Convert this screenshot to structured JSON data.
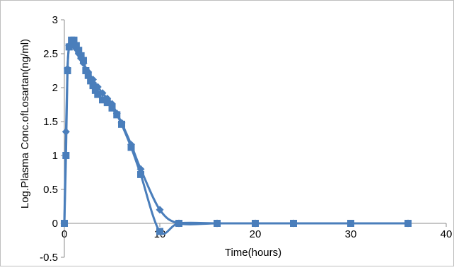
{
  "chart_data": {
    "type": "scatter",
    "title": "",
    "xlabel": "Time(hours)",
    "ylabel": "Log.Plasma Conc.ofLosartan(ng/ml)",
    "xlim": [
      0,
      40
    ],
    "ylim": [
      -0.5,
      3
    ],
    "x_ticks": [
      "0",
      "10",
      "20",
      "30",
      "40"
    ],
    "y_ticks": [
      "-0.5",
      "0",
      "0.5",
      "1",
      "1.5",
      "2",
      "2.5",
      "3"
    ],
    "x_tick_values": [
      0,
      10,
      20,
      30,
      40
    ],
    "y_tick_values": [
      -0.5,
      0,
      0.5,
      1,
      1.5,
      2,
      2.5,
      3
    ],
    "grid": false,
    "legend": "none",
    "series": [
      {
        "marker": "diamond",
        "color": "#4a7ebb",
        "x": [
          0,
          0.17,
          0.33,
          0.5,
          0.75,
          1,
          1.25,
          1.5,
          1.75,
          2,
          2.5,
          3,
          3.5,
          4,
          4.5,
          5,
          5.5,
          6,
          7,
          8,
          10,
          12,
          16,
          20,
          24,
          36
        ],
        "y": [
          0,
          1.35,
          2.28,
          2.62,
          2.65,
          2.62,
          2.57,
          2.5,
          2.43,
          2.36,
          2.23,
          2.12,
          2.01,
          1.92,
          1.84,
          1.76,
          1.62,
          1.48,
          1.16,
          0.8,
          0.2,
          0,
          0,
          0,
          0,
          0
        ]
      },
      {
        "marker": "square",
        "color": "#4a7ebb",
        "x": [
          0,
          0.17,
          0.33,
          0.5,
          0.75,
          1,
          1.25,
          1.5,
          1.75,
          2,
          2.25,
          2.5,
          2.75,
          3,
          3.25,
          3.5,
          4,
          4.5,
          5,
          5.5,
          6,
          7,
          8,
          10,
          12,
          16,
          20,
          24,
          30,
          36
        ],
        "y": [
          0,
          1.0,
          2.25,
          2.6,
          2.7,
          2.7,
          2.62,
          2.55,
          2.47,
          2.4,
          2.25,
          2.18,
          2.1,
          2.03,
          1.96,
          1.9,
          1.82,
          1.78,
          1.7,
          1.6,
          1.46,
          1.12,
          0.72,
          -0.12,
          0,
          0,
          0,
          0,
          0,
          0
        ]
      }
    ]
  }
}
